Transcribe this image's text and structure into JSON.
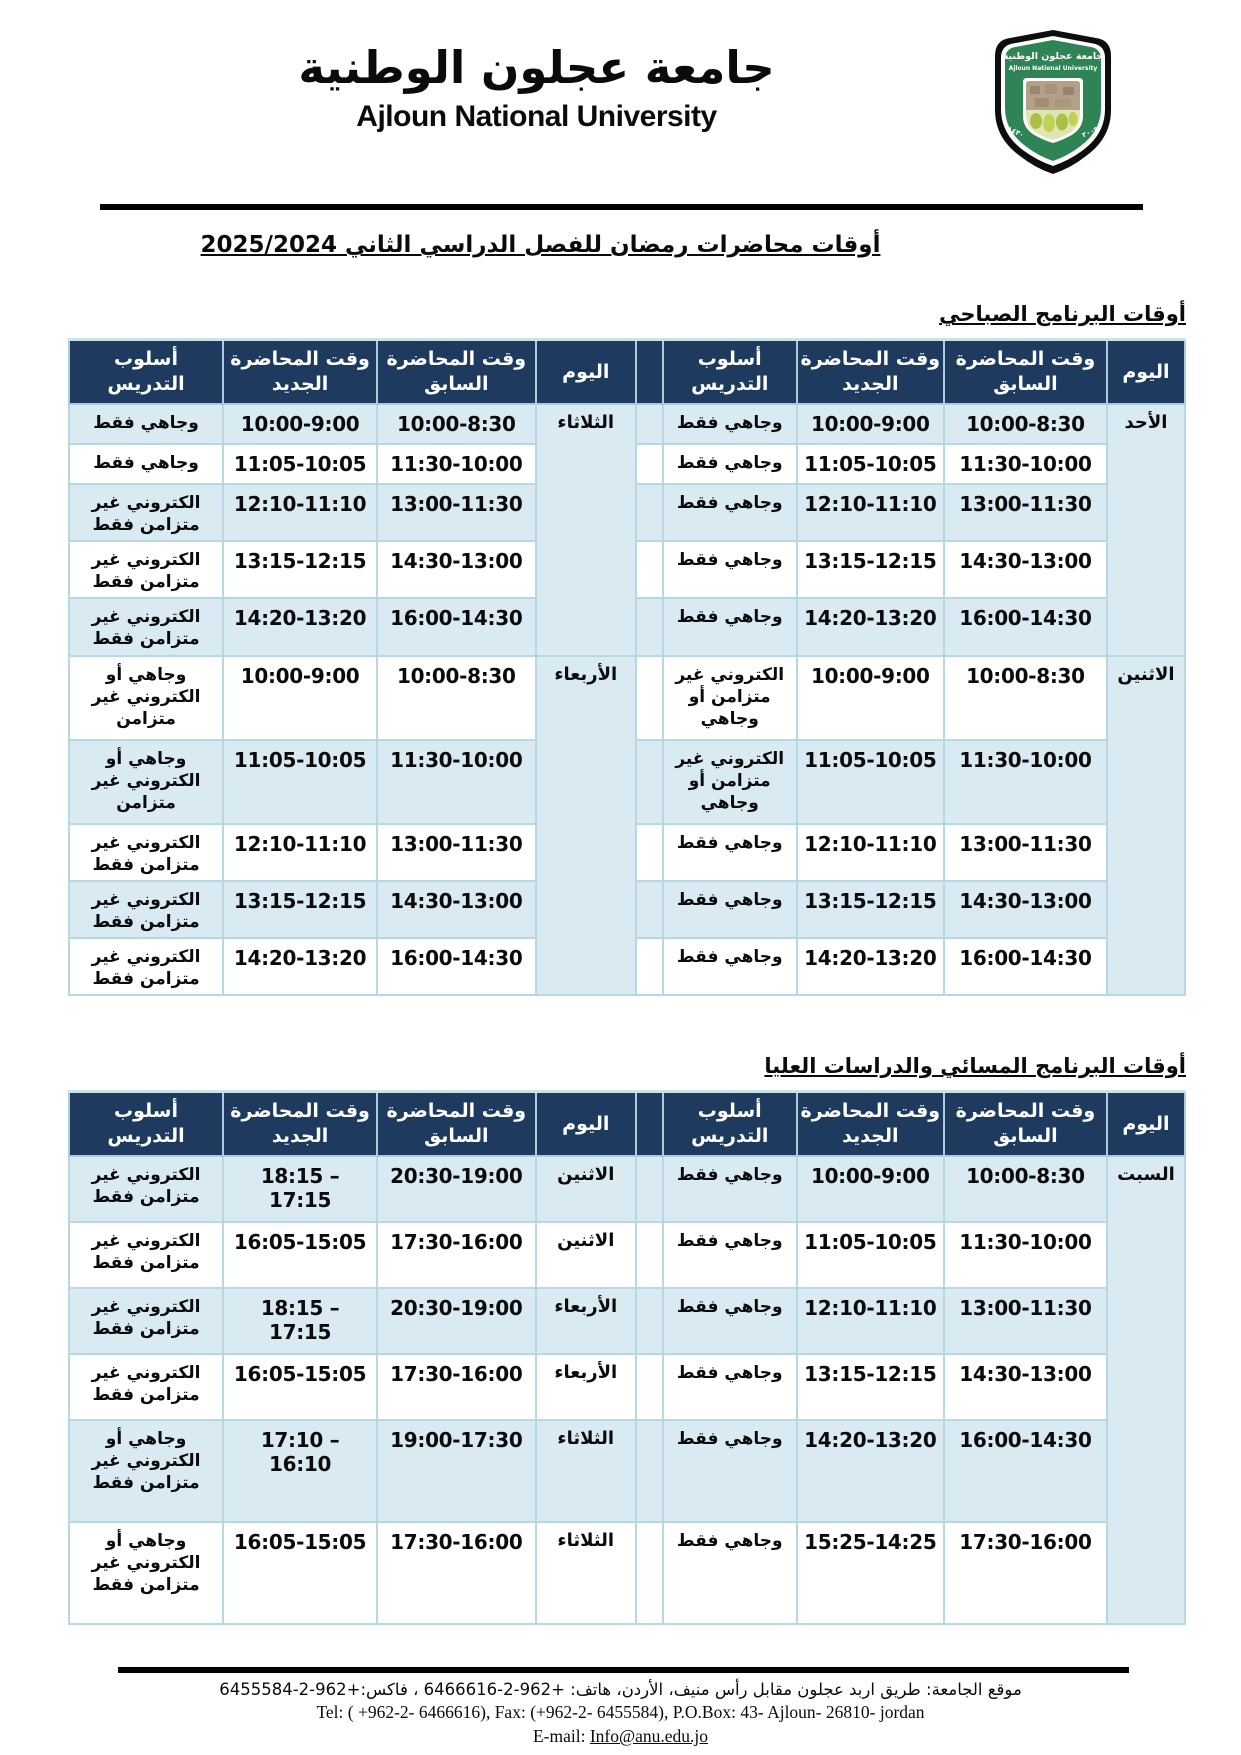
{
  "header": {
    "title_ar": "جامعة عجلون الوطنية",
    "title_en": "Ajloun National University",
    "logo": {
      "line1": "جامعة عجلون الوطنية",
      "line2": "Ajloun National University",
      "green": "#2e8454",
      "castle": "#b3a089",
      "field": "#dce7b4"
    }
  },
  "doc_title": "أوقات محاضرات رمضان للفصل الدراسي الثاني 2025/2024",
  "col_headers": {
    "day": "اليوم",
    "prev": "وقت المحاضرة\nالسابق",
    "new": "وقت المحاضرة\nالجديد",
    "method": "أسلوب\nالتدريس"
  },
  "colors": {
    "header_bg": "#1e3a5f",
    "row_shaded": "#d9eaf2",
    "row_plain": "#ffffff",
    "border": "#b7d7e3"
  },
  "tables": [
    {
      "name": "morning-schedule-table",
      "heading": "أوقات البرنامج الصباحي",
      "right": {
        "groups": [
          [
            "الأحد",
            5
          ],
          [
            "الاثنين",
            5
          ]
        ],
        "rows": [
          {
            "prev": "10:00-8:30",
            "new": "10:00-9:00",
            "method": "وجاهي فقط"
          },
          {
            "prev": "11:30-10:00",
            "new": "11:05-10:05",
            "method": "وجاهي فقط"
          },
          {
            "prev": "13:00-11:30",
            "new": "12:10-11:10",
            "method": "وجاهي فقط"
          },
          {
            "prev": "14:30-13:00",
            "new": "13:15-12:15",
            "method": "وجاهي فقط"
          },
          {
            "prev": "16:00-14:30",
            "new": "14:20-13:20",
            "method": "وجاهي فقط"
          },
          {
            "prev": "10:00-8:30",
            "new": "10:00-9:00",
            "method": "الكتروني غير متزامن أو وجاهي"
          },
          {
            "prev": "11:30-10:00",
            "new": "11:05-10:05",
            "method": "الكتروني غير متزامن أو وجاهي"
          },
          {
            "prev": "13:00-11:30",
            "new": "12:10-11:10",
            "method": "وجاهي فقط"
          },
          {
            "prev": "14:30-13:00",
            "new": "13:15-12:15",
            "method": "وجاهي فقط"
          },
          {
            "prev": "16:00-14:30",
            "new": "14:20-13:20",
            "method": "وجاهي فقط"
          }
        ]
      },
      "left": {
        "groups": [
          [
            "الثلاثاء",
            5
          ],
          [
            "الأربعاء",
            5
          ]
        ],
        "rows": [
          {
            "prev": "10:00-8:30",
            "new": "10:00-9:00",
            "method": "وجاهي فقط"
          },
          {
            "prev": "11:30-10:00",
            "new": "11:05-10:05",
            "method": "وجاهي فقط"
          },
          {
            "prev": "13:00-11:30",
            "new": "12:10-11:10",
            "method": "الكتروني غير متزامن فقط"
          },
          {
            "prev": "14:30-13:00",
            "new": "13:15-12:15",
            "method": "الكتروني غير متزامن فقط"
          },
          {
            "prev": "16:00-14:30",
            "new": "14:20-13:20",
            "method": "الكتروني غير متزامن فقط"
          },
          {
            "prev": "10:00-8:30",
            "new": "10:00-9:00",
            "method": "وجاهي أو الكتروني غير متزامن"
          },
          {
            "prev": "11:30-10:00",
            "new": "11:05-10:05",
            "method": "وجاهي أو الكتروني غير متزامن"
          },
          {
            "prev": "13:00-11:30",
            "new": "12:10-11:10",
            "method": "الكتروني غير متزامن فقط"
          },
          {
            "prev": "14:30-13:00",
            "new": "13:15-12:15",
            "method": "الكتروني غير متزامن فقط"
          },
          {
            "prev": "16:00-14:30",
            "new": "14:20-13:20",
            "method": "الكتروني غير متزامن فقط"
          }
        ]
      }
    },
    {
      "name": "evening-schedule-table",
      "heading": "أوقات البرنامج المسائي والدراسات العليا",
      "right": {
        "groups": [
          [
            "السبت",
            6
          ]
        ],
        "rows": [
          {
            "prev": "10:00-8:30",
            "new": "10:00-9:00",
            "method": "وجاهي فقط"
          },
          {
            "prev": "11:30-10:00",
            "new": "11:05-10:05",
            "method": "وجاهي فقط"
          },
          {
            "prev": "13:00-11:30",
            "new": "12:10-11:10",
            "method": "وجاهي فقط"
          },
          {
            "prev": "14:30-13:00",
            "new": "13:15-12:15",
            "method": "وجاهي فقط"
          },
          {
            "prev": "16:00-14:30",
            "new": "14:20-13:20",
            "method": "وجاهي فقط"
          },
          {
            "prev": "17:30-16:00",
            "new": "15:25-14:25",
            "method": "وجاهي فقط"
          }
        ]
      },
      "left": {
        "groups": [
          [
            "الاثنين",
            1
          ],
          [
            "الاثنين",
            1
          ],
          [
            "الأربعاء",
            1
          ],
          [
            "الأربعاء",
            1
          ],
          [
            "الثلاثاء",
            1
          ],
          [
            "الثلاثاء",
            1
          ]
        ],
        "rows": [
          {
            "prev": "20:30-19:00",
            "new": "18:15 – 17:15",
            "method": "الكتروني غير متزامن فقط"
          },
          {
            "prev": "17:30-16:00",
            "new": "16:05-15:05",
            "method": "الكتروني غير متزامن فقط"
          },
          {
            "prev": "20:30-19:00",
            "new": "18:15 – 17:15",
            "method": "الكتروني غير متزامن فقط"
          },
          {
            "prev": "17:30-16:00",
            "new": "16:05-15:05",
            "method": "الكتروني غير متزامن فقط"
          },
          {
            "prev": "19:00-17:30",
            "new": "17:10 – 16:10",
            "method": "وجاهي أو الكتروني غير متزامن فقط"
          },
          {
            "prev": "17:30-16:00",
            "new": "16:05-15:05",
            "method": "وجاهي أو الكتروني غير متزامن فقط"
          }
        ]
      }
    }
  ],
  "footer": {
    "address_ar": "موقع الجامعة: طريق اربد عجلون مقابل رأس منيف، الأردن، هاتف: +962-2-6466616 ، فاكس:+962-2-6455584",
    "contact_en": "Tel: ( +962-2- 6466616), Fax: (+962-2- 6455584), P.O.Box: 43- Ajloun- 26810- jordan",
    "email_label": "E-mail:",
    "email": "Info@anu.edu.jo"
  }
}
